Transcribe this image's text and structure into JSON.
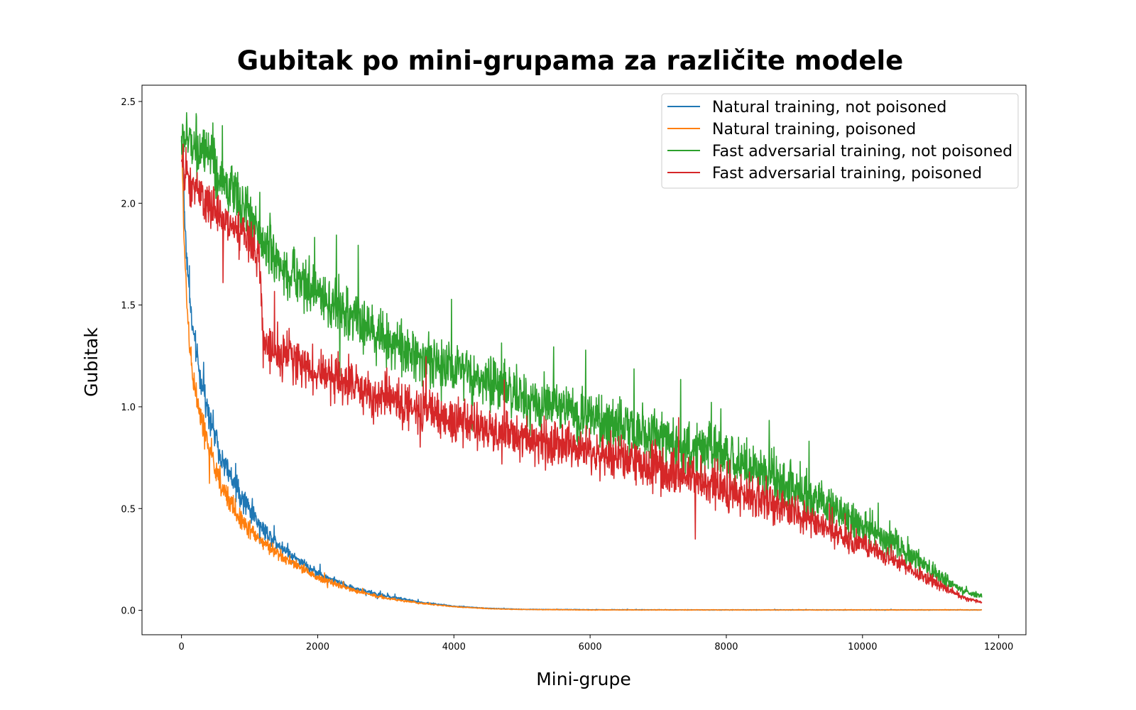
{
  "chart_data": {
    "type": "line",
    "title": "Gubitak po mini-grupama za različite modele",
    "xlabel": "Mini-grupe",
    "ylabel": "Gubitak",
    "xlim": [
      -580,
      12400
    ],
    "ylim": [
      -0.12,
      2.58
    ],
    "xticks": [
      0,
      2000,
      4000,
      6000,
      8000,
      10000,
      12000
    ],
    "xtick_labels": [
      "0",
      "2000",
      "4000",
      "6000",
      "8000",
      "10000",
      "12000"
    ],
    "yticks": [
      0.0,
      0.5,
      1.0,
      1.5,
      2.0,
      2.5
    ],
    "ytick_labels": [
      "0.0",
      "0.5",
      "1.0",
      "1.5",
      "2.0",
      "2.5"
    ],
    "grid": false,
    "legend_position": "top-right",
    "series": [
      {
        "name": "Natural training, not poisoned",
        "color": "#1f77b4",
        "noise": 0.05,
        "x": [
          0,
          50,
          100,
          150,
          200,
          300,
          400,
          500,
          600,
          800,
          1000,
          1200,
          1500,
          2000,
          2500,
          3000,
          3500,
          4000,
          4500,
          5000,
          6000,
          8000,
          10000,
          11750
        ],
        "y": [
          2.3,
          1.9,
          1.62,
          1.42,
          1.3,
          1.1,
          0.98,
          0.85,
          0.74,
          0.6,
          0.5,
          0.4,
          0.3,
          0.18,
          0.11,
          0.07,
          0.04,
          0.02,
          0.01,
          0.005,
          0.003,
          0.002,
          0.002,
          0.002
        ]
      },
      {
        "name": "Natural training, poisoned",
        "color": "#ff7f0e",
        "noise": 0.05,
        "x": [
          0,
          50,
          100,
          150,
          200,
          300,
          400,
          500,
          600,
          800,
          1000,
          1200,
          1500,
          2000,
          2500,
          3000,
          3500,
          4000,
          4500,
          5000,
          6000,
          8000,
          10000,
          11750
        ],
        "y": [
          2.3,
          1.72,
          1.4,
          1.2,
          1.08,
          0.92,
          0.8,
          0.7,
          0.6,
          0.48,
          0.4,
          0.33,
          0.26,
          0.16,
          0.1,
          0.06,
          0.035,
          0.018,
          0.008,
          0.004,
          0.002,
          0.002,
          0.002,
          0.002
        ]
      },
      {
        "name": "Fast adversarial training, not poisoned",
        "color": "#2ca02c",
        "noise": 0.1,
        "x": [
          0,
          200,
          500,
          1000,
          1200,
          1500,
          2000,
          3000,
          4000,
          5000,
          6000,
          7000,
          8000,
          9000,
          10000,
          10500,
          11000,
          11500,
          11750
        ],
        "y": [
          2.32,
          2.3,
          2.15,
          1.95,
          1.8,
          1.68,
          1.55,
          1.33,
          1.18,
          1.05,
          0.95,
          0.85,
          0.76,
          0.6,
          0.42,
          0.32,
          0.2,
          0.09,
          0.07
        ]
      },
      {
        "name": "Fast adversarial training, poisoned",
        "color": "#d62728",
        "noise": 0.085,
        "x": [
          0,
          100,
          500,
          1000,
          1150,
          1200,
          1500,
          2000,
          3000,
          4000,
          5000,
          6000,
          7000,
          8000,
          9000,
          10000,
          10500,
          11000,
          11500,
          11750
        ],
        "y": [
          2.2,
          2.1,
          1.95,
          1.82,
          1.7,
          1.3,
          1.25,
          1.17,
          1.04,
          0.93,
          0.85,
          0.78,
          0.7,
          0.6,
          0.48,
          0.32,
          0.24,
          0.15,
          0.06,
          0.04
        ]
      }
    ]
  }
}
